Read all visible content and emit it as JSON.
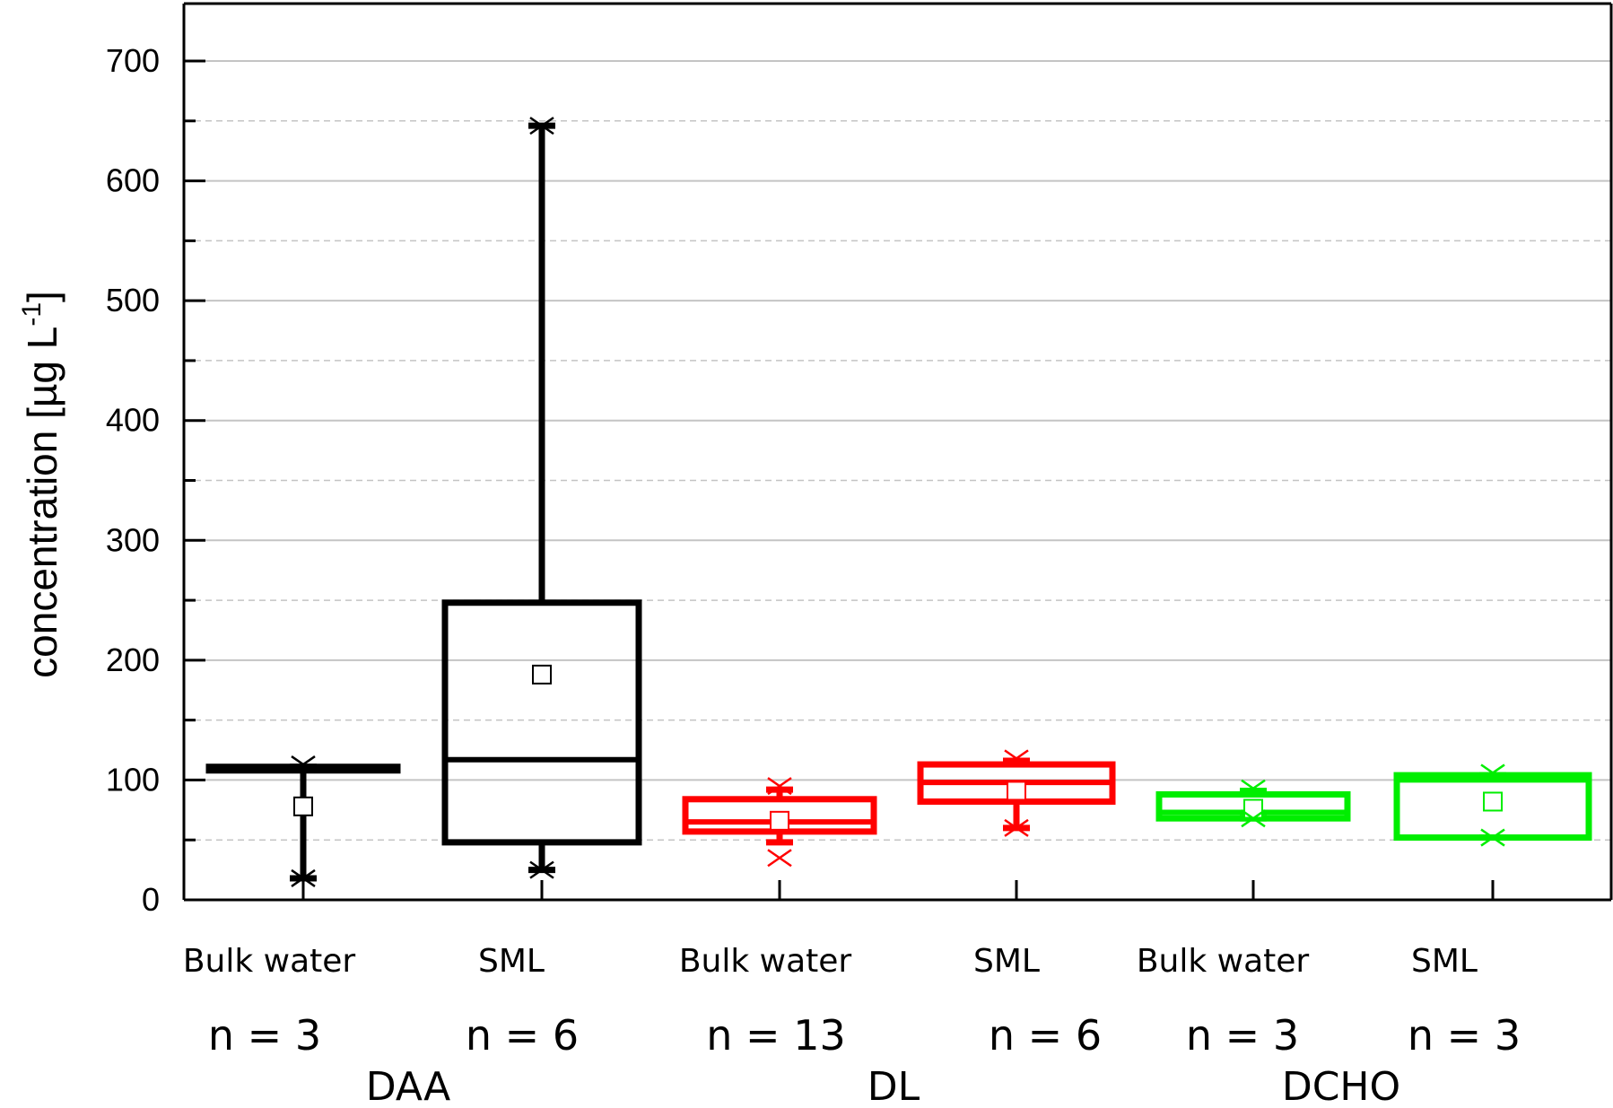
{
  "chart_data": {
    "type": "box",
    "ylabel": "concentration [µg L⁻¹]",
    "ylabel_main": "concentration [µg L",
    "ylabel_sup": "-1",
    "ylabel_close": "]",
    "ylim": [
      0,
      750
    ],
    "yticks": [
      0,
      100,
      200,
      300,
      400,
      500,
      600,
      700
    ],
    "minor_gridlines": [
      50,
      150,
      250,
      350,
      450,
      550,
      650
    ],
    "grid": true,
    "colors": {
      "DAA": "#000000",
      "DL": "#ff0000",
      "DCHO": "#00ee00"
    },
    "groups": [
      {
        "name": "DAA",
        "color": "#000000",
        "boxes": [
          {
            "label": "Bulk water",
            "n": "n = 3",
            "q1": 108,
            "q3": 111,
            "median": 110,
            "mean": 78,
            "whisker_low": 18,
            "whisker_high": 111,
            "min": 18,
            "max": 113
          },
          {
            "label": "SML",
            "n": "n = 6",
            "q1": 48,
            "q3": 248,
            "median": 117,
            "mean": 188,
            "whisker_low": 25,
            "whisker_high": 646,
            "min": 25,
            "max": 646
          }
        ]
      },
      {
        "name": "DL",
        "color": "#ff0000",
        "boxes": [
          {
            "label": "Bulk water",
            "n": "n = 13",
            "q1": 57,
            "q3": 84,
            "median": 65,
            "mean": 66,
            "whisker_low": 48,
            "whisker_high": 92,
            "min": 35,
            "max": 95
          },
          {
            "label": "SML",
            "n": "n = 6",
            "q1": 82,
            "q3": 113,
            "median": 98,
            "mean": 91,
            "whisker_low": 60,
            "whisker_high": 116,
            "min": 60,
            "max": 118
          }
        ]
      },
      {
        "name": "DCHO",
        "color": "#00ee00",
        "boxes": [
          {
            "label": "Bulk water",
            "n": "n = 3",
            "q1": 68,
            "q3": 88,
            "median": 73,
            "mean": 76,
            "whisker_low": 68,
            "whisker_high": 91,
            "min": 68,
            "max": 93
          },
          {
            "label": "SML",
            "n": "n = 3",
            "q1": 52,
            "q3": 104,
            "median": 100,
            "mean": 82,
            "whisker_low": 52,
            "whisker_high": 104,
            "min": 52,
            "max": 106
          }
        ]
      }
    ]
  }
}
